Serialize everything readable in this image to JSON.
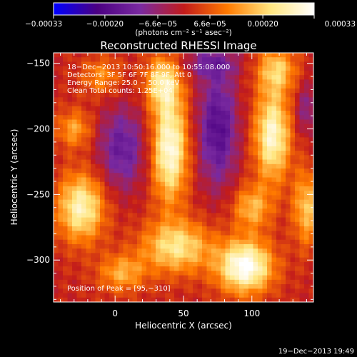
{
  "chart_data": {
    "type": "heatmap",
    "title": "Reconstructed RHESSI Image",
    "xlabel": "Heliocentric X (arcsec)",
    "ylabel": "Heliocentric Y (arcsec)",
    "xlim": [
      -45,
      145
    ],
    "ylim": [
      -332,
      -142
    ],
    "x_ticks": [
      0,
      50,
      100
    ],
    "x_tick_labels": [
      "0",
      "50",
      "100"
    ],
    "y_ticks": [
      -150,
      -200,
      -250,
      -300
    ],
    "y_tick_labels": [
      "−150",
      "−200",
      "−250",
      "−300"
    ],
    "colorbar": {
      "range": [
        -0.00033,
        0.00033
      ],
      "ticks": [
        -0.00033,
        -0.0002,
        -6.6e-05,
        6.6e-05,
        0.0002,
        0.00033
      ],
      "tick_labels": [
        "−0.00033",
        "−0.00020",
        "−6.6e−05",
        "6.6e−05",
        "0.00020",
        "0.00033"
      ],
      "unit_label": "(photons cm⁻² s⁻¹ asec⁻²)",
      "colors": [
        "#0000ff",
        "#4b0082",
        "#7a2aa0",
        "#c21b1b",
        "#ff7a00",
        "#ffe680",
        "#ffffff"
      ]
    },
    "annotations": [
      "18−Dec−2013 10:50:16.000 to 10:55:08.000",
      "Detectors: 3F 5F 6F 7F 8F 9F, Att 0",
      "Energy Range: 25.0 − 50.0 keV",
      "Clean     Total counts: 1.25E+04"
    ],
    "peak_label": "Position of Peak = [95,−310]",
    "footer_timestamp": "19−Dec−2013 19:49",
    "blobs": [
      {
        "x": 40,
        "y": -215,
        "sx": 9,
        "sy": 28,
        "amp": 0.0003
      },
      {
        "x": 35,
        "y": -165,
        "sx": 9,
        "sy": 14,
        "amp": 0.00022
      },
      {
        "x": 115,
        "y": -205,
        "sx": 9,
        "sy": 24,
        "amp": 0.00028
      },
      {
        "x": 118,
        "y": -155,
        "sx": 10,
        "sy": 12,
        "amp": 0.00018
      },
      {
        "x": 95,
        "y": -305,
        "sx": 14,
        "sy": 14,
        "amp": 0.00033
      },
      {
        "x": 100,
        "y": -260,
        "sx": 10,
        "sy": 12,
        "amp": 0.00016
      },
      {
        "x": -25,
        "y": -260,
        "sx": 12,
        "sy": 18,
        "amp": 0.00026
      },
      {
        "x": -30,
        "y": -200,
        "sx": 9,
        "sy": 10,
        "amp": 0.00014
      },
      {
        "x": 45,
        "y": -290,
        "sx": 18,
        "sy": 14,
        "amp": 0.00022
      },
      {
        "x": 5,
        "y": -310,
        "sx": 12,
        "sy": 10,
        "amp": 0.00015
      },
      {
        "x": -10,
        "y": -160,
        "sx": 10,
        "sy": 10,
        "amp": 0.00012
      },
      {
        "x": 140,
        "y": -260,
        "sx": 7,
        "sy": 20,
        "amp": 0.00018
      },
      {
        "x": 75,
        "y": -200,
        "sx": 10,
        "sy": 30,
        "amp": -0.0002
      },
      {
        "x": 5,
        "y": -215,
        "sx": 12,
        "sy": 22,
        "amp": -0.00016
      },
      {
        "x": 70,
        "y": -150,
        "sx": 14,
        "sy": 8,
        "amp": -0.00012
      },
      {
        "x": 140,
        "y": -185,
        "sx": 6,
        "sy": 14,
        "amp": -0.0001
      }
    ]
  }
}
